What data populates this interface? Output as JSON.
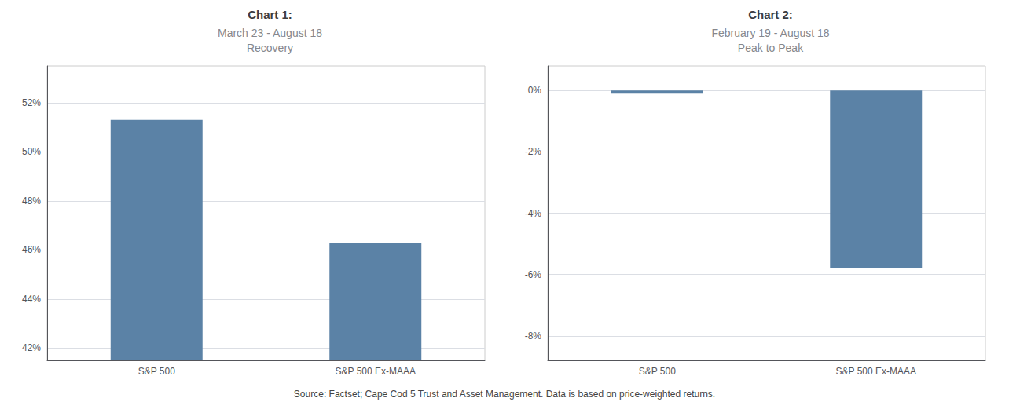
{
  "chart_data": [
    {
      "type": "bar",
      "title": "Chart 1:",
      "subtitle": "March 23 - August 18\nRecovery",
      "categories": [
        "S&P 500",
        "S&P 500 Ex-MAAA"
      ],
      "values": [
        51.3,
        46.3
      ],
      "color": "#5b82a6",
      "ylim": [
        41.5,
        53.5
      ],
      "yticks": [
        {
          "value": 42,
          "label": "42%"
        },
        {
          "value": 44,
          "label": "44%"
        },
        {
          "value": 46,
          "label": "46%"
        },
        {
          "value": 48,
          "label": "48%"
        },
        {
          "value": 50,
          "label": "50%"
        },
        {
          "value": 52,
          "label": "52%"
        }
      ],
      "grid": true,
      "annotations": [
        "Source: Factset; Cape Cod 5 Trust and Asset Management. Data is based on price-weighted returns."
      ]
    },
    {
      "type": "bar",
      "title": "Chart 2:",
      "subtitle": "February 19 - August 18\nPeak to Peak",
      "categories": [
        "S&P 500",
        "S&P 500 Ex-MAAA"
      ],
      "values": [
        -0.1,
        -5.8
      ],
      "color": "#5b82a6",
      "ylim": [
        -8.8,
        0.8
      ],
      "yticks": [
        {
          "value": 0,
          "label": "0%"
        },
        {
          "value": -2,
          "label": "-2%"
        },
        {
          "value": -4,
          "label": "-4%"
        },
        {
          "value": -6,
          "label": "-6%"
        },
        {
          "value": -8,
          "label": "-8%"
        }
      ],
      "grid": true
    }
  ]
}
